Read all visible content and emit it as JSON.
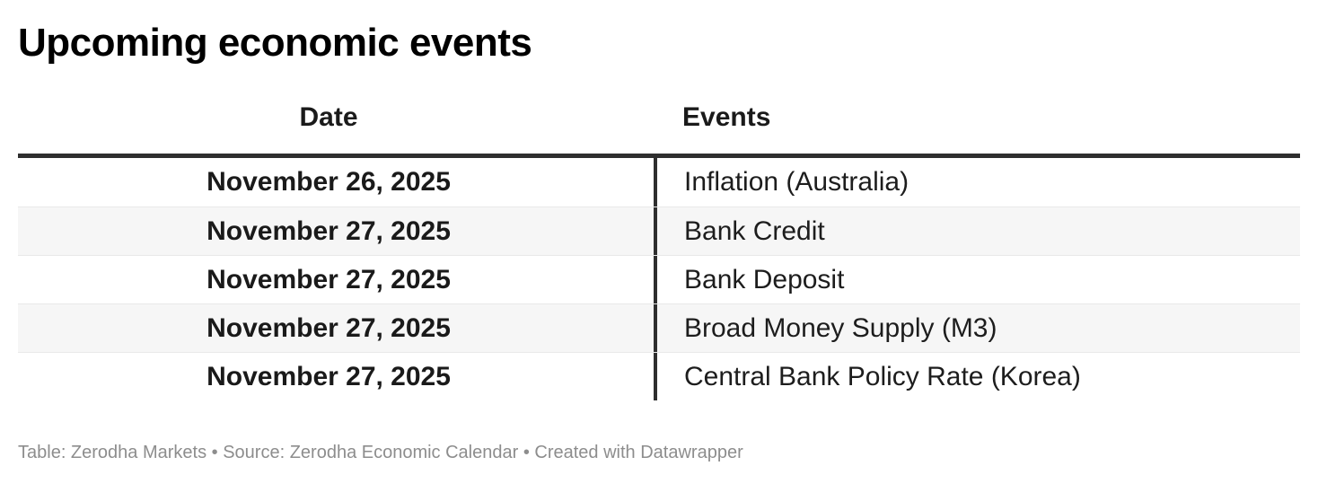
{
  "chart_data": {
    "type": "table",
    "title": "Upcoming economic events",
    "columns": [
      "Date",
      "Events"
    ],
    "rows": [
      [
        "November 26, 2025",
        "Inflation (Australia)"
      ],
      [
        "November 27, 2025",
        "Bank Credit"
      ],
      [
        "November 27, 2025",
        "Bank Deposit"
      ],
      [
        "November 27, 2025",
        "Broad Money Supply (M3)"
      ],
      [
        "November 27, 2025",
        "Central Bank Policy Rate (Korea)"
      ]
    ],
    "footer": "Table: Zerodha Markets • Source: Zerodha Economic Calendar • Created with Datawrapper",
    "layout_hints": {
      "stripe_rows": [
        2,
        4
      ],
      "date_column_align": "center",
      "events_column_align": "left"
    }
  },
  "colors": {
    "title_text": "#000000",
    "body_text": "#1a1a1a",
    "header_rule": "#2e2e2e",
    "column_divider": "#2e2e2e",
    "row_stripe": "#f6f6f6",
    "row_separator": "#e9e9e9",
    "footer_text": "#8d8d8d",
    "background": "#ffffff"
  }
}
